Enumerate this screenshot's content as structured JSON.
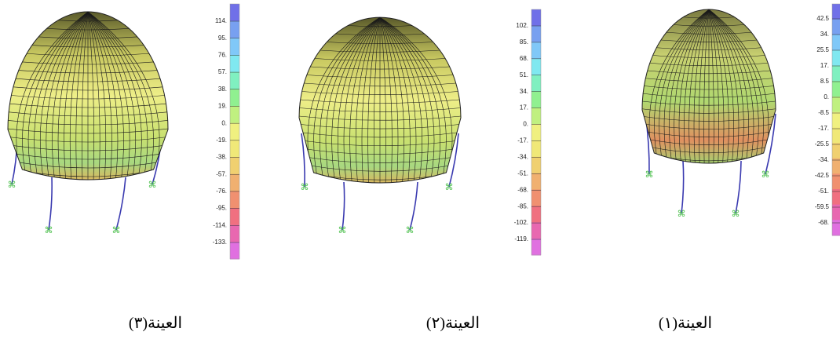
{
  "panels": [
    {
      "caption": "العينة(٣)",
      "scale_labels": [
        "114.",
        "95.",
        "76.",
        "57.",
        "38.",
        "19.",
        "0.",
        "-19.",
        "-38.",
        "-57.",
        "-76.",
        "-95.",
        "-114.",
        "-133."
      ]
    },
    {
      "caption": "العينة(٢)",
      "scale_labels": [
        "102.",
        "85.",
        "68.",
        "51.",
        "34.",
        "17.",
        "0.",
        "-17.",
        "-34.",
        "-51.",
        "-68.",
        "-85.",
        "-102.",
        "-119."
      ]
    },
    {
      "caption": "العينة(١)",
      "scale_labels": [
        "42.5",
        "34.",
        "25.5",
        "17.",
        "8.5",
        "0.",
        "-8.5",
        "-17.",
        "-25.5",
        "-34.",
        "-42.5",
        "-51.",
        "-59.5",
        "-68."
      ]
    }
  ]
}
